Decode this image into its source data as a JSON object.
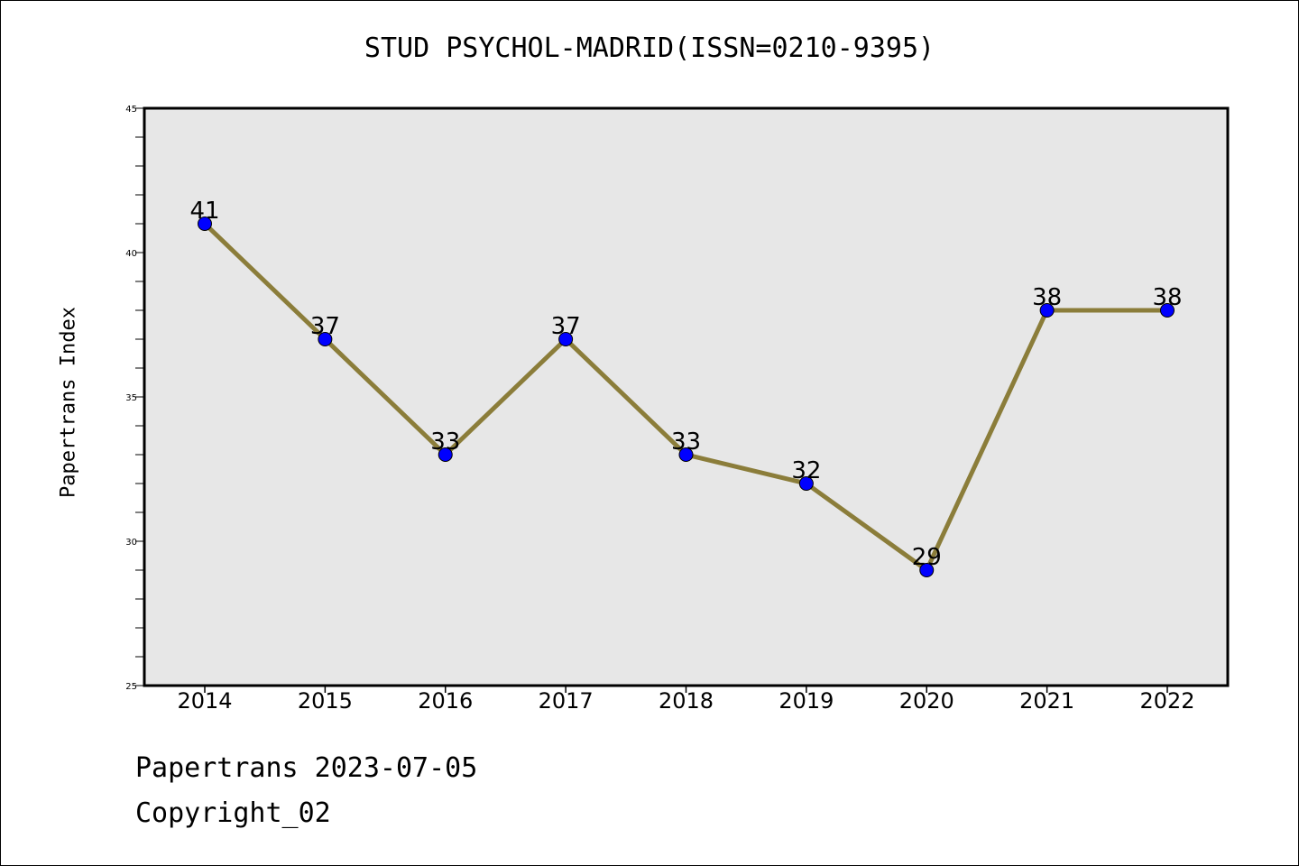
{
  "title": "STUD PSYCHOL-MADRID(ISSN=0210-9395)",
  "footer": {
    "line1": "Papertrans 2023-07-05",
    "line2": "Copyright_02"
  },
  "colors": {
    "line": "#8B7D3A",
    "marker": "#0000FF",
    "plot_bg": "#E7E7E7"
  },
  "chart_data": {
    "type": "line",
    "title": "STUD PSYCHOL-MADRID(ISSN=0210-9395)",
    "xlabel": "",
    "ylabel": "Papertrans Index",
    "categories": [
      "2014",
      "2015",
      "2016",
      "2017",
      "2018",
      "2019",
      "2020",
      "2021",
      "2022"
    ],
    "series": [
      {
        "values": [
          41,
          37,
          33,
          37,
          33,
          32,
          29,
          38,
          38
        ]
      }
    ],
    "ylim": [
      25,
      45
    ],
    "yticks": [
      25,
      30,
      35,
      40,
      45
    ],
    "ytick_labels": [
      "25",
      "30",
      "35",
      "40",
      "45"
    ],
    "grid": false,
    "data_labels": true
  }
}
